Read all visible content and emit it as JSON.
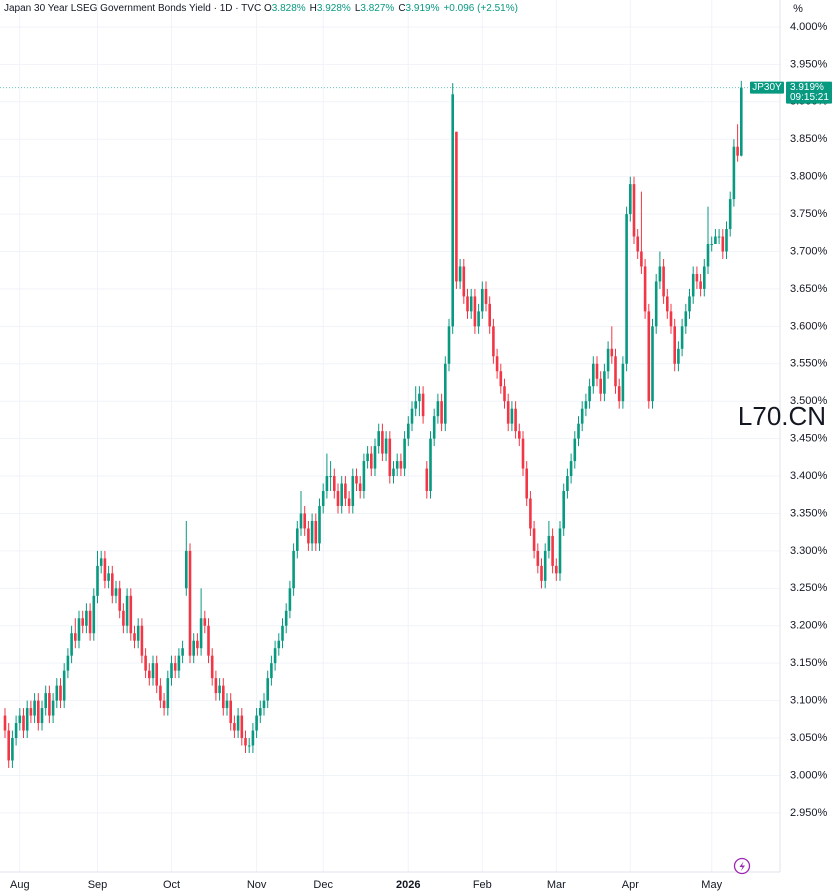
{
  "chart_data": {
    "type": "candlestick",
    "title": "Japan 30 Year LSEG Government Bonds Yield · 1D · TVC",
    "legend": [
      {
        "key": "O",
        "text": "3.828%"
      },
      {
        "key": "H",
        "text": "3.928%"
      },
      {
        "key": "L",
        "text": "3.827%"
      },
      {
        "key": "C",
        "text": "3.919%"
      }
    ],
    "change": "+0.096 (+2.51%)",
    "y_unit": "%",
    "symbol": "JP30Y",
    "last_label": "3.919%",
    "time": "09:15:21",
    "watermark": "L70.CN",
    "up_color": "#089981",
    "down_color": "#f23645",
    "grid": true,
    "ylim": [
      2.871,
      4.036
    ],
    "yticks": [
      {
        "value": 4.0,
        "label": "4.000%"
      },
      {
        "value": 3.95,
        "label": "3.950%"
      },
      {
        "value": 3.9,
        "label": "3.900%"
      },
      {
        "value": 3.85,
        "label": "3.850%"
      },
      {
        "value": 3.8,
        "label": "3.800%"
      },
      {
        "value": 3.75,
        "label": "3.750%"
      },
      {
        "value": 3.7,
        "label": "3.700%"
      },
      {
        "value": 3.65,
        "label": "3.650%"
      },
      {
        "value": 3.6,
        "label": "3.600%"
      },
      {
        "value": 3.55,
        "label": "3.550%"
      },
      {
        "value": 3.5,
        "label": "3.500%"
      },
      {
        "value": 3.45,
        "label": "3.450%"
      },
      {
        "value": 3.4,
        "label": "3.400%"
      },
      {
        "value": 3.35,
        "label": "3.350%"
      },
      {
        "value": 3.3,
        "label": "3.300%"
      },
      {
        "value": 3.25,
        "label": "3.250%"
      },
      {
        "value": 3.2,
        "label": "3.200%"
      },
      {
        "value": 3.15,
        "label": "3.150%"
      },
      {
        "value": 3.1,
        "label": "3.100%"
      },
      {
        "value": 3.05,
        "label": "3.050%"
      },
      {
        "value": 3.0,
        "label": "3.000%"
      },
      {
        "value": 2.95,
        "label": "2.950%"
      }
    ],
    "categories": [
      null,
      null,
      null,
      null,
      "Aug",
      null,
      null,
      null,
      null,
      null,
      null,
      null,
      null,
      null,
      null,
      null,
      null,
      null,
      null,
      null,
      null,
      null,
      null,
      null,
      null,
      "Sep",
      null,
      null,
      null,
      null,
      null,
      null,
      null,
      null,
      null,
      null,
      null,
      null,
      null,
      null,
      null,
      null,
      null,
      null,
      null,
      "Oct",
      null,
      null,
      null,
      null,
      null,
      null,
      null,
      null,
      null,
      null,
      null,
      null,
      null,
      null,
      null,
      null,
      null,
      null,
      null,
      null,
      null,
      null,
      "Nov",
      null,
      null,
      null,
      null,
      null,
      null,
      null,
      null,
      null,
      null,
      null,
      null,
      null,
      null,
      null,
      null,
      null,
      "Dec",
      null,
      null,
      null,
      null,
      null,
      null,
      null,
      null,
      null,
      null,
      null,
      null,
      null,
      null,
      null,
      null,
      null,
      null,
      null,
      null,
      null,
      null,
      "2026",
      null,
      null,
      null,
      null,
      null,
      null,
      null,
      null,
      null,
      null,
      null,
      null,
      null,
      null,
      null,
      null,
      null,
      null,
      null,
      "Feb",
      null,
      null,
      null,
      null,
      null,
      null,
      null,
      null,
      null,
      null,
      null,
      null,
      null,
      null,
      null,
      null,
      null,
      null,
      null,
      "Mar",
      null,
      null,
      null,
      null,
      null,
      null,
      null,
      null,
      null,
      null,
      null,
      null,
      null,
      null,
      null,
      null,
      null,
      null,
      null,
      "Apr",
      null,
      null,
      null,
      null,
      null,
      null,
      null,
      null,
      null,
      null,
      null,
      null,
      null,
      null,
      null,
      null,
      null,
      null,
      null,
      null,
      null,
      "May",
      null,
      null,
      null,
      null,
      null,
      null,
      null,
      null
    ],
    "ohlc": [
      [
        3.08,
        3.09,
        3.05,
        3.06
      ],
      [
        3.06,
        3.07,
        3.01,
        3.02
      ],
      [
        3.02,
        3.06,
        3.01,
        3.05
      ],
      [
        3.05,
        3.08,
        3.04,
        3.07
      ],
      [
        3.07,
        3.09,
        3.06,
        3.08
      ],
      [
        3.08,
        3.09,
        3.05,
        3.06
      ],
      [
        3.06,
        3.1,
        3.05,
        3.09
      ],
      [
        3.09,
        3.1,
        3.07,
        3.08
      ],
      [
        3.08,
        3.11,
        3.07,
        3.1
      ],
      [
        3.1,
        3.11,
        3.06,
        3.07
      ],
      [
        3.07,
        3.1,
        3.06,
        3.09
      ],
      [
        3.09,
        3.12,
        3.08,
        3.11
      ],
      [
        3.11,
        3.12,
        3.07,
        3.08
      ],
      [
        3.08,
        3.11,
        3.07,
        3.1
      ],
      [
        3.1,
        3.13,
        3.09,
        3.12
      ],
      [
        3.12,
        3.13,
        3.09,
        3.1
      ],
      [
        3.1,
        3.15,
        3.09,
        3.14
      ],
      [
        3.14,
        3.17,
        3.13,
        3.16
      ],
      [
        3.16,
        3.2,
        3.15,
        3.19
      ],
      [
        3.19,
        3.21,
        3.17,
        3.18
      ],
      [
        3.18,
        3.22,
        3.17,
        3.21
      ],
      [
        3.21,
        3.22,
        3.19,
        3.2
      ],
      [
        3.2,
        3.23,
        3.19,
        3.22
      ],
      [
        3.22,
        3.23,
        3.18,
        3.19
      ],
      [
        3.19,
        3.25,
        3.18,
        3.24
      ],
      [
        3.24,
        3.3,
        3.23,
        3.28
      ],
      [
        3.28,
        3.3,
        3.27,
        3.29
      ],
      [
        3.29,
        3.3,
        3.25,
        3.26
      ],
      [
        3.26,
        3.28,
        3.25,
        3.27
      ],
      [
        3.27,
        3.28,
        3.23,
        3.24
      ],
      [
        3.24,
        3.26,
        3.23,
        3.25
      ],
      [
        3.25,
        3.26,
        3.21,
        3.22
      ],
      [
        3.22,
        3.23,
        3.19,
        3.2
      ],
      [
        3.2,
        3.25,
        3.19,
        3.24
      ],
      [
        3.24,
        3.25,
        3.18,
        3.19
      ],
      [
        3.19,
        3.2,
        3.17,
        3.18
      ],
      [
        3.18,
        3.21,
        3.17,
        3.2
      ],
      [
        3.2,
        3.21,
        3.15,
        3.16
      ],
      [
        3.16,
        3.17,
        3.13,
        3.14
      ],
      [
        3.14,
        3.15,
        3.12,
        3.13
      ],
      [
        3.13,
        3.16,
        3.12,
        3.15
      ],
      [
        3.15,
        3.16,
        3.11,
        3.12
      ],
      [
        3.12,
        3.13,
        3.09,
        3.1
      ],
      [
        3.1,
        3.11,
        3.08,
        3.09
      ],
      [
        3.09,
        3.14,
        3.08,
        3.13
      ],
      [
        3.13,
        3.16,
        3.12,
        3.15
      ],
      [
        3.15,
        3.16,
        3.13,
        3.14
      ],
      [
        3.14,
        3.17,
        3.13,
        3.16
      ],
      [
        3.16,
        3.18,
        3.15,
        3.17
      ],
      [
        3.25,
        3.34,
        3.24,
        3.3
      ],
      [
        3.3,
        3.31,
        3.15,
        3.16
      ],
      [
        3.16,
        3.19,
        3.15,
        3.18
      ],
      [
        3.18,
        3.19,
        3.16,
        3.17
      ],
      [
        3.17,
        3.25,
        3.16,
        3.21
      ],
      [
        3.21,
        3.22,
        3.19,
        3.2
      ],
      [
        3.2,
        3.21,
        3.15,
        3.16
      ],
      [
        3.16,
        3.17,
        3.12,
        3.13
      ],
      [
        3.13,
        3.14,
        3.1,
        3.11
      ],
      [
        3.11,
        3.13,
        3.1,
        3.12
      ],
      [
        3.12,
        3.13,
        3.08,
        3.09
      ],
      [
        3.09,
        3.11,
        3.08,
        3.1
      ],
      [
        3.1,
        3.11,
        3.06,
        3.07
      ],
      [
        3.07,
        3.08,
        3.05,
        3.06
      ],
      [
        3.06,
        3.09,
        3.05,
        3.08
      ],
      [
        3.08,
        3.09,
        3.04,
        3.05
      ],
      [
        3.05,
        3.06,
        3.03,
        3.04
      ],
      [
        3.04,
        3.05,
        3.03,
        3.04
      ],
      [
        3.04,
        3.07,
        3.03,
        3.06
      ],
      [
        3.06,
        3.09,
        3.05,
        3.08
      ],
      [
        3.08,
        3.1,
        3.07,
        3.09
      ],
      [
        3.09,
        3.11,
        3.08,
        3.1
      ],
      [
        3.1,
        3.14,
        3.09,
        3.13
      ],
      [
        3.13,
        3.16,
        3.12,
        3.15
      ],
      [
        3.15,
        3.18,
        3.14,
        3.17
      ],
      [
        3.17,
        3.19,
        3.16,
        3.18
      ],
      [
        3.18,
        3.21,
        3.17,
        3.2
      ],
      [
        3.2,
        3.23,
        3.19,
        3.22
      ],
      [
        3.22,
        3.26,
        3.21,
        3.25
      ],
      [
        3.25,
        3.31,
        3.24,
        3.3
      ],
      [
        3.3,
        3.34,
        3.29,
        3.33
      ],
      [
        3.33,
        3.38,
        3.32,
        3.35
      ],
      [
        3.35,
        3.36,
        3.32,
        3.33
      ],
      [
        3.33,
        3.34,
        3.3,
        3.31
      ],
      [
        3.31,
        3.35,
        3.3,
        3.34
      ],
      [
        3.34,
        3.35,
        3.3,
        3.31
      ],
      [
        3.31,
        3.37,
        3.3,
        3.36
      ],
      [
        3.36,
        3.39,
        3.35,
        3.38
      ],
      [
        3.38,
        3.43,
        3.37,
        3.4
      ],
      [
        3.4,
        3.42,
        3.38,
        3.4
      ],
      [
        3.4,
        3.41,
        3.37,
        3.38
      ],
      [
        3.38,
        3.39,
        3.35,
        3.36
      ],
      [
        3.36,
        3.4,
        3.35,
        3.39
      ],
      [
        3.39,
        3.4,
        3.36,
        3.37
      ],
      [
        3.37,
        3.38,
        3.35,
        3.36
      ],
      [
        3.36,
        3.41,
        3.35,
        3.4
      ],
      [
        3.4,
        3.41,
        3.38,
        3.39
      ],
      [
        3.39,
        3.4,
        3.37,
        3.38
      ],
      [
        3.38,
        3.43,
        3.37,
        3.42
      ],
      [
        3.42,
        3.44,
        3.41,
        3.43
      ],
      [
        3.43,
        3.44,
        3.4,
        3.41
      ],
      [
        3.41,
        3.45,
        3.4,
        3.44
      ],
      [
        3.44,
        3.47,
        3.43,
        3.46
      ],
      [
        3.46,
        3.47,
        3.42,
        3.43
      ],
      [
        3.43,
        3.46,
        3.42,
        3.45
      ],
      [
        3.45,
        3.46,
        3.39,
        3.4
      ],
      [
        3.4,
        3.42,
        3.39,
        3.41
      ],
      [
        3.41,
        3.43,
        3.4,
        3.42
      ],
      [
        3.42,
        3.43,
        3.4,
        3.41
      ],
      [
        3.41,
        3.46,
        3.4,
        3.45
      ],
      [
        3.45,
        3.48,
        3.44,
        3.47
      ],
      [
        3.47,
        3.5,
        3.46,
        3.49
      ],
      [
        3.49,
        3.52,
        3.48,
        3.5
      ],
      [
        3.5,
        3.52,
        3.48,
        3.51
      ],
      [
        3.51,
        3.52,
        3.47,
        3.48
      ],
      [
        3.41,
        3.42,
        3.37,
        3.38
      ],
      [
        3.38,
        3.46,
        3.37,
        3.45
      ],
      [
        3.45,
        3.49,
        3.44,
        3.48
      ],
      [
        3.48,
        3.51,
        3.47,
        3.5
      ],
      [
        3.5,
        3.51,
        3.46,
        3.47
      ],
      [
        3.47,
        3.56,
        3.46,
        3.55
      ],
      [
        3.55,
        3.61,
        3.54,
        3.6
      ],
      [
        3.6,
        3.925,
        3.59,
        3.91
      ],
      [
        3.86,
        3.86,
        3.65,
        3.66
      ],
      [
        3.66,
        3.69,
        3.65,
        3.68
      ],
      [
        3.68,
        3.69,
        3.63,
        3.64
      ],
      [
        3.64,
        3.65,
        3.61,
        3.62
      ],
      [
        3.62,
        3.65,
        3.61,
        3.64
      ],
      [
        3.64,
        3.65,
        3.59,
        3.6
      ],
      [
        3.6,
        3.63,
        3.59,
        3.62
      ],
      [
        3.62,
        3.66,
        3.61,
        3.65
      ],
      [
        3.65,
        3.66,
        3.62,
        3.63
      ],
      [
        3.63,
        3.64,
        3.59,
        3.6
      ],
      [
        3.6,
        3.61,
        3.55,
        3.56
      ],
      [
        3.56,
        3.57,
        3.53,
        3.54
      ],
      [
        3.54,
        3.55,
        3.51,
        3.52
      ],
      [
        3.52,
        3.53,
        3.49,
        3.5
      ],
      [
        3.5,
        3.51,
        3.46,
        3.47
      ],
      [
        3.47,
        3.5,
        3.46,
        3.49
      ],
      [
        3.49,
        3.5,
        3.45,
        3.46
      ],
      [
        3.46,
        3.47,
        3.44,
        3.45
      ],
      [
        3.45,
        3.46,
        3.4,
        3.41
      ],
      [
        3.41,
        3.42,
        3.36,
        3.37
      ],
      [
        3.37,
        3.38,
        3.32,
        3.33
      ],
      [
        3.33,
        3.34,
        3.29,
        3.3
      ],
      [
        3.3,
        3.31,
        3.27,
        3.28
      ],
      [
        3.28,
        3.29,
        3.25,
        3.26
      ],
      [
        3.26,
        3.31,
        3.25,
        3.3
      ],
      [
        3.3,
        3.34,
        3.29,
        3.32
      ],
      [
        3.32,
        3.33,
        3.27,
        3.28
      ],
      [
        3.28,
        3.29,
        3.26,
        3.27
      ],
      [
        3.27,
        3.34,
        3.26,
        3.33
      ],
      [
        3.33,
        3.39,
        3.32,
        3.38
      ],
      [
        3.38,
        3.41,
        3.37,
        3.4
      ],
      [
        3.4,
        3.43,
        3.39,
        3.42
      ],
      [
        3.42,
        3.46,
        3.41,
        3.45
      ],
      [
        3.45,
        3.48,
        3.44,
        3.47
      ],
      [
        3.47,
        3.5,
        3.46,
        3.49
      ],
      [
        3.49,
        3.51,
        3.48,
        3.5
      ],
      [
        3.5,
        3.53,
        3.49,
        3.52
      ],
      [
        3.52,
        3.56,
        3.51,
        3.55
      ],
      [
        3.55,
        3.56,
        3.52,
        3.53
      ],
      [
        3.53,
        3.54,
        3.5,
        3.51
      ],
      [
        3.51,
        3.55,
        3.5,
        3.54
      ],
      [
        3.54,
        3.58,
        3.53,
        3.57
      ],
      [
        3.57,
        3.6,
        3.55,
        3.56
      ],
      [
        3.56,
        3.57,
        3.51,
        3.52
      ],
      [
        3.52,
        3.53,
        3.49,
        3.5
      ],
      [
        3.5,
        3.56,
        3.49,
        3.55
      ],
      [
        3.55,
        3.76,
        3.54,
        3.75
      ],
      [
        3.75,
        3.8,
        3.74,
        3.79
      ],
      [
        3.79,
        3.8,
        3.71,
        3.72
      ],
      [
        3.72,
        3.73,
        3.69,
        3.7
      ],
      [
        3.7,
        3.78,
        3.67,
        3.68
      ],
      [
        3.68,
        3.69,
        3.61,
        3.62
      ],
      [
        3.62,
        3.63,
        3.49,
        3.5
      ],
      [
        3.5,
        3.61,
        3.49,
        3.6
      ],
      [
        3.6,
        3.67,
        3.59,
        3.66
      ],
      [
        3.66,
        3.7,
        3.65,
        3.68
      ],
      [
        3.68,
        3.69,
        3.63,
        3.64
      ],
      [
        3.64,
        3.65,
        3.61,
        3.62
      ],
      [
        3.62,
        3.63,
        3.59,
        3.6
      ],
      [
        3.6,
        3.61,
        3.54,
        3.55
      ],
      [
        3.55,
        3.58,
        3.54,
        3.57
      ],
      [
        3.57,
        3.61,
        3.56,
        3.6
      ],
      [
        3.6,
        3.63,
        3.59,
        3.62
      ],
      [
        3.62,
        3.65,
        3.61,
        3.64
      ],
      [
        3.64,
        3.68,
        3.63,
        3.67
      ],
      [
        3.67,
        3.68,
        3.65,
        3.66
      ],
      [
        3.66,
        3.67,
        3.64,
        3.65
      ],
      [
        3.65,
        3.69,
        3.64,
        3.68
      ],
      [
        3.68,
        3.76,
        3.67,
        3.71
      ],
      [
        3.71,
        3.72,
        3.7,
        3.71
      ],
      [
        3.71,
        3.73,
        3.71,
        3.72
      ],
      [
        3.72,
        3.73,
        3.71,
        3.72
      ],
      [
        3.72,
        3.73,
        3.69,
        3.7
      ],
      [
        3.7,
        3.74,
        3.69,
        3.73
      ],
      [
        3.73,
        3.78,
        3.72,
        3.77
      ],
      [
        3.77,
        3.85,
        3.76,
        3.84
      ],
      [
        3.84,
        3.87,
        3.82,
        3.828
      ],
      [
        3.828,
        3.928,
        3.827,
        3.919
      ]
    ]
  }
}
